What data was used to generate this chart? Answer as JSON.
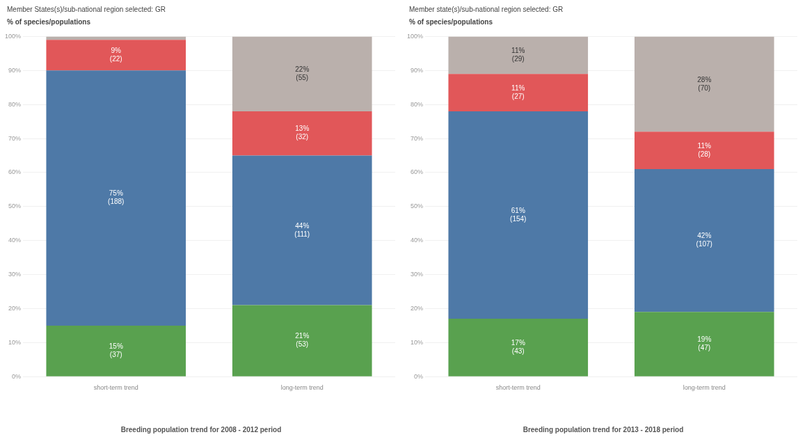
{
  "chart_data": [
    {
      "type": "bar",
      "stacked": true,
      "title": "Member States(s)/sub-national region selected: GR",
      "ylabel": "% of species/populations",
      "xlabel": "Breeding population trend for 2008 - 2012 period",
      "categories": [
        "short-term trend",
        "long-term trend"
      ],
      "series": [
        {
          "color": "#59a14f",
          "values": [
            15,
            21
          ],
          "value_labels": [
            "15%\n(37)",
            "21%\n(53)"
          ]
        },
        {
          "color": "#4e79a7",
          "values": [
            75,
            44
          ],
          "value_labels": [
            "75%\n(188)",
            "44%\n(111)"
          ]
        },
        {
          "color": "#e15759",
          "values": [
            9,
            13
          ],
          "value_labels": [
            "9%\n(22)",
            "13%\n(32)"
          ]
        },
        {
          "color": "#bab0ac",
          "values": [
            1,
            22
          ],
          "value_labels": [
            null,
            "22%\n(55)"
          ]
        }
      ],
      "ylim": [
        0,
        100
      ],
      "yticks": [
        {
          "value": 0,
          "label": "0%"
        },
        {
          "value": 10,
          "label": "10%"
        },
        {
          "value": 20,
          "label": "20%"
        },
        {
          "value": 30,
          "label": "30%"
        },
        {
          "value": 40,
          "label": "40%"
        },
        {
          "value": 50,
          "label": "50%"
        },
        {
          "value": 60,
          "label": "60%"
        },
        {
          "value": 70,
          "label": "70%"
        },
        {
          "value": 80,
          "label": "80%"
        },
        {
          "value": 90,
          "label": "90%"
        },
        {
          "value": 100,
          "label": "100%"
        }
      ],
      "grid": "y",
      "legend": false
    },
    {
      "type": "bar",
      "stacked": true,
      "title": "Member state(s)/sub-national region selected: GR",
      "ylabel": "% of species/populations",
      "xlabel": "Breeding population trend for 2013 - 2018 period",
      "categories": [
        "short-term trend",
        "long-term trend"
      ],
      "series": [
        {
          "color": "#59a14f",
          "values": [
            17,
            19
          ],
          "value_labels": [
            "17%\n(43)",
            "19%\n(47)"
          ]
        },
        {
          "color": "#4e79a7",
          "values": [
            61,
            42
          ],
          "value_labels": [
            "61%\n(154)",
            "42%\n(107)"
          ]
        },
        {
          "color": "#e15759",
          "values": [
            11,
            11
          ],
          "value_labels": [
            "11%\n(27)",
            "11%\n(28)"
          ]
        },
        {
          "color": "#bab0ac",
          "values": [
            11,
            28
          ],
          "value_labels": [
            "11%\n(29)",
            "28%\n(70)"
          ]
        }
      ],
      "ylim": [
        0,
        100
      ],
      "yticks": [
        {
          "value": 0,
          "label": "0%"
        },
        {
          "value": 10,
          "label": "10%"
        },
        {
          "value": 20,
          "label": "20%"
        },
        {
          "value": 30,
          "label": "30%"
        },
        {
          "value": 40,
          "label": "40%"
        },
        {
          "value": 50,
          "label": "50%"
        },
        {
          "value": 60,
          "label": "60%"
        },
        {
          "value": 70,
          "label": "70%"
        },
        {
          "value": 80,
          "label": "80%"
        },
        {
          "value": 90,
          "label": "90%"
        },
        {
          "value": 100,
          "label": "100%"
        }
      ],
      "grid": "y",
      "legend": false
    }
  ]
}
